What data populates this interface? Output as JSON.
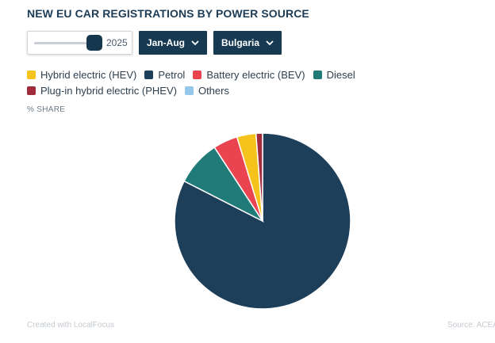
{
  "title": "NEW EU CAR REGISTRATIONS BY POWER SOURCE",
  "controls": {
    "year": "2025",
    "period": "Jan-Aug",
    "country": "Bulgaria"
  },
  "unit_label": "% SHARE",
  "footer": {
    "credit": "Created with LocalFocus",
    "source": "Source: ACEA"
  },
  "colors": {
    "accent": "#173a52"
  },
  "chart_data": {
    "type": "pie",
    "title": "",
    "categories": [
      "Hybrid electric (HEV)",
      "Petrol",
      "Battery electric (BEV)",
      "Diesel",
      "Plug-in hybrid electric (PHEV)",
      "Others"
    ],
    "colors": [
      "#f6c21c",
      "#1e3f5a",
      "#e9444f",
      "#1f7a78",
      "#a02c3e",
      "#93c8ea"
    ],
    "values": [
      3.5,
      82.5,
      4.5,
      8.3,
      1.2,
      0
    ],
    "legend_position": "top-left"
  }
}
